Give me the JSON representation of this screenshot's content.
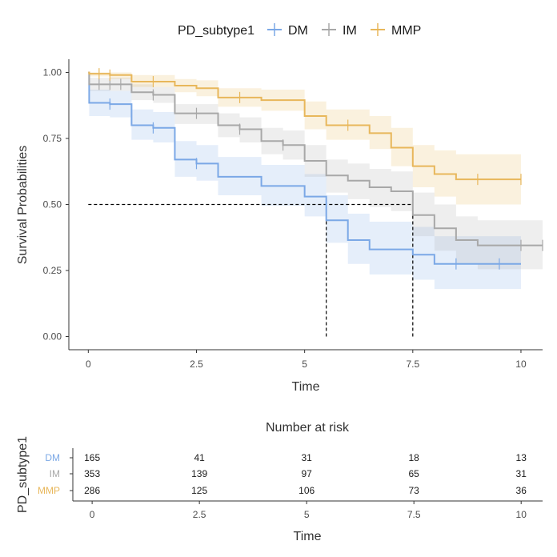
{
  "chart_data": {
    "type": "line",
    "subtype": "kaplan-meier",
    "legend": {
      "title": "PD_subtype1",
      "position": "top",
      "entries": [
        "DM",
        "IM",
        "MMP"
      ]
    },
    "xlabel": "Time",
    "ylabel": "Survival Probabilities",
    "xlim": [
      -0.45,
      10.5
    ],
    "ylim": [
      -0.05,
      1.05
    ],
    "x_ticks": [
      0,
      2.5,
      5,
      7.5,
      10
    ],
    "x_tick_labels": [
      "0",
      "2.5",
      "5",
      "7.5",
      "10"
    ],
    "y_ticks": [
      0,
      0.25,
      0.5,
      0.75,
      1.0
    ],
    "y_tick_labels": [
      "0.00",
      "0.25",
      "0.50",
      "0.75",
      "1.00"
    ],
    "colors": {
      "DM": "#7ba8e6",
      "IM": "#a8a8a8",
      "MMP": "#e8b75b"
    },
    "series": [
      {
        "name": "DM",
        "steps": [
          [
            0,
            1.0
          ],
          [
            0.02,
            0.885
          ],
          [
            0.5,
            0.88
          ],
          [
            1.0,
            0.8
          ],
          [
            1.5,
            0.79
          ],
          [
            2.0,
            0.67
          ],
          [
            2.5,
            0.655
          ],
          [
            3.0,
            0.605
          ],
          [
            4.0,
            0.57
          ],
          [
            5.0,
            0.53
          ],
          [
            5.5,
            0.44
          ],
          [
            6.0,
            0.365
          ],
          [
            6.5,
            0.33
          ],
          [
            7.5,
            0.31
          ],
          [
            8.0,
            0.275
          ],
          [
            10.0,
            0.275
          ]
        ],
        "lower": [
          [
            0,
            1.0
          ],
          [
            0.02,
            0.835
          ],
          [
            0.5,
            0.83
          ],
          [
            1.0,
            0.745
          ],
          [
            1.5,
            0.735
          ],
          [
            2.0,
            0.605
          ],
          [
            2.5,
            0.59
          ],
          [
            3.0,
            0.535
          ],
          [
            4.0,
            0.495
          ],
          [
            5.0,
            0.455
          ],
          [
            5.5,
            0.355
          ],
          [
            6.0,
            0.275
          ],
          [
            6.5,
            0.235
          ],
          [
            7.5,
            0.215
          ],
          [
            8.0,
            0.18
          ],
          [
            10.0,
            0.18
          ]
        ],
        "upper": [
          [
            0,
            1.0
          ],
          [
            0.02,
            0.935
          ],
          [
            0.5,
            0.93
          ],
          [
            1.0,
            0.86
          ],
          [
            1.5,
            0.85
          ],
          [
            2.0,
            0.74
          ],
          [
            2.5,
            0.725
          ],
          [
            3.0,
            0.68
          ],
          [
            4.0,
            0.65
          ],
          [
            5.0,
            0.615
          ],
          [
            5.5,
            0.535
          ],
          [
            6.0,
            0.465
          ],
          [
            6.5,
            0.435
          ],
          [
            7.5,
            0.415
          ],
          [
            8.0,
            0.38
          ],
          [
            10.0,
            0.38
          ]
        ],
        "censors": [
          0.5,
          1.5,
          2.5,
          8.5,
          9.5
        ],
        "median": 5.5
      },
      {
        "name": "IM",
        "steps": [
          [
            0,
            1.0
          ],
          [
            0.02,
            0.955
          ],
          [
            1.0,
            0.925
          ],
          [
            1.5,
            0.915
          ],
          [
            2.0,
            0.845
          ],
          [
            3.0,
            0.8
          ],
          [
            3.5,
            0.785
          ],
          [
            4.0,
            0.74
          ],
          [
            4.5,
            0.725
          ],
          [
            5.0,
            0.665
          ],
          [
            5.5,
            0.61
          ],
          [
            6.0,
            0.59
          ],
          [
            6.5,
            0.565
          ],
          [
            7.0,
            0.55
          ],
          [
            7.5,
            0.46
          ],
          [
            8.0,
            0.41
          ],
          [
            8.5,
            0.365
          ],
          [
            9.0,
            0.345
          ],
          [
            10.5,
            0.345
          ]
        ],
        "lower": [
          [
            0,
            1.0
          ],
          [
            0.02,
            0.93
          ],
          [
            1.0,
            0.895
          ],
          [
            1.5,
            0.885
          ],
          [
            2.0,
            0.805
          ],
          [
            3.0,
            0.755
          ],
          [
            3.5,
            0.735
          ],
          [
            4.0,
            0.69
          ],
          [
            4.5,
            0.67
          ],
          [
            5.0,
            0.605
          ],
          [
            5.5,
            0.545
          ],
          [
            6.0,
            0.52
          ],
          [
            6.5,
            0.49
          ],
          [
            7.0,
            0.475
          ],
          [
            7.5,
            0.38
          ],
          [
            8.0,
            0.325
          ],
          [
            8.5,
            0.275
          ],
          [
            9.0,
            0.255
          ],
          [
            10.5,
            0.255
          ]
        ],
        "upper": [
          [
            0,
            1.0
          ],
          [
            0.02,
            0.98
          ],
          [
            1.0,
            0.955
          ],
          [
            1.5,
            0.945
          ],
          [
            2.0,
            0.88
          ],
          [
            3.0,
            0.845
          ],
          [
            3.5,
            0.83
          ],
          [
            4.0,
            0.79
          ],
          [
            4.5,
            0.78
          ],
          [
            5.0,
            0.725
          ],
          [
            5.5,
            0.67
          ],
          [
            6.0,
            0.655
          ],
          [
            6.5,
            0.635
          ],
          [
            7.0,
            0.625
          ],
          [
            7.5,
            0.545
          ],
          [
            8.0,
            0.5
          ],
          [
            8.5,
            0.455
          ],
          [
            9.0,
            0.44
          ],
          [
            10.5,
            0.44
          ]
        ],
        "censors": [
          0.25,
          0.5,
          0.75,
          1.5,
          2.5,
          3.5,
          4.5,
          10.0,
          10.5
        ],
        "median": 7.5
      },
      {
        "name": "MMP",
        "steps": [
          [
            0,
            1.0
          ],
          [
            0.02,
            0.995
          ],
          [
            0.5,
            0.99
          ],
          [
            1.0,
            0.965
          ],
          [
            2.0,
            0.95
          ],
          [
            2.5,
            0.94
          ],
          [
            3.0,
            0.905
          ],
          [
            4.0,
            0.895
          ],
          [
            5.0,
            0.835
          ],
          [
            5.5,
            0.8
          ],
          [
            6.5,
            0.77
          ],
          [
            7.0,
            0.715
          ],
          [
            7.5,
            0.645
          ],
          [
            8.0,
            0.615
          ],
          [
            8.5,
            0.595
          ],
          [
            10.0,
            0.595
          ]
        ],
        "lower": [
          [
            0,
            1.0
          ],
          [
            0.02,
            0.985
          ],
          [
            0.5,
            0.975
          ],
          [
            1.0,
            0.945
          ],
          [
            2.0,
            0.925
          ],
          [
            2.5,
            0.91
          ],
          [
            3.0,
            0.87
          ],
          [
            4.0,
            0.855
          ],
          [
            5.0,
            0.785
          ],
          [
            5.5,
            0.745
          ],
          [
            6.5,
            0.71
          ],
          [
            7.0,
            0.645
          ],
          [
            7.5,
            0.565
          ],
          [
            8.0,
            0.53
          ],
          [
            8.5,
            0.5
          ],
          [
            10.0,
            0.5
          ]
        ],
        "upper": [
          [
            0,
            1.0
          ],
          [
            0.02,
            1.0
          ],
          [
            0.5,
            1.0
          ],
          [
            1.0,
            0.99
          ],
          [
            2.0,
            0.975
          ],
          [
            2.5,
            0.97
          ],
          [
            3.0,
            0.94
          ],
          [
            4.0,
            0.935
          ],
          [
            5.0,
            0.89
          ],
          [
            5.5,
            0.86
          ],
          [
            6.5,
            0.835
          ],
          [
            7.0,
            0.79
          ],
          [
            7.5,
            0.725
          ],
          [
            8.0,
            0.705
          ],
          [
            8.5,
            0.69
          ],
          [
            10.0,
            0.69
          ]
        ],
        "censors": [
          0.25,
          0.5,
          1.5,
          3.5,
          6.0,
          9.0,
          10.0
        ],
        "median": null
      }
    ],
    "median_reference_line": {
      "y": 0.5,
      "x_end": 7.5,
      "style": "dashed"
    },
    "risk_table": {
      "title": "Number at risk",
      "ylabel": "PD_subtype1",
      "xlabel": "Time",
      "times": [
        "0",
        "2.5",
        "5",
        "7.5",
        "10"
      ],
      "rows": [
        {
          "strata": "DM",
          "counts": [
            "165",
            "41",
            "31",
            "18",
            "13"
          ]
        },
        {
          "strata": "IM",
          "counts": [
            "353",
            "139",
            "97",
            "65",
            "31"
          ]
        },
        {
          "strata": "MMP",
          "counts": [
            "286",
            "125",
            "106",
            "73",
            "36"
          ]
        }
      ]
    }
  }
}
